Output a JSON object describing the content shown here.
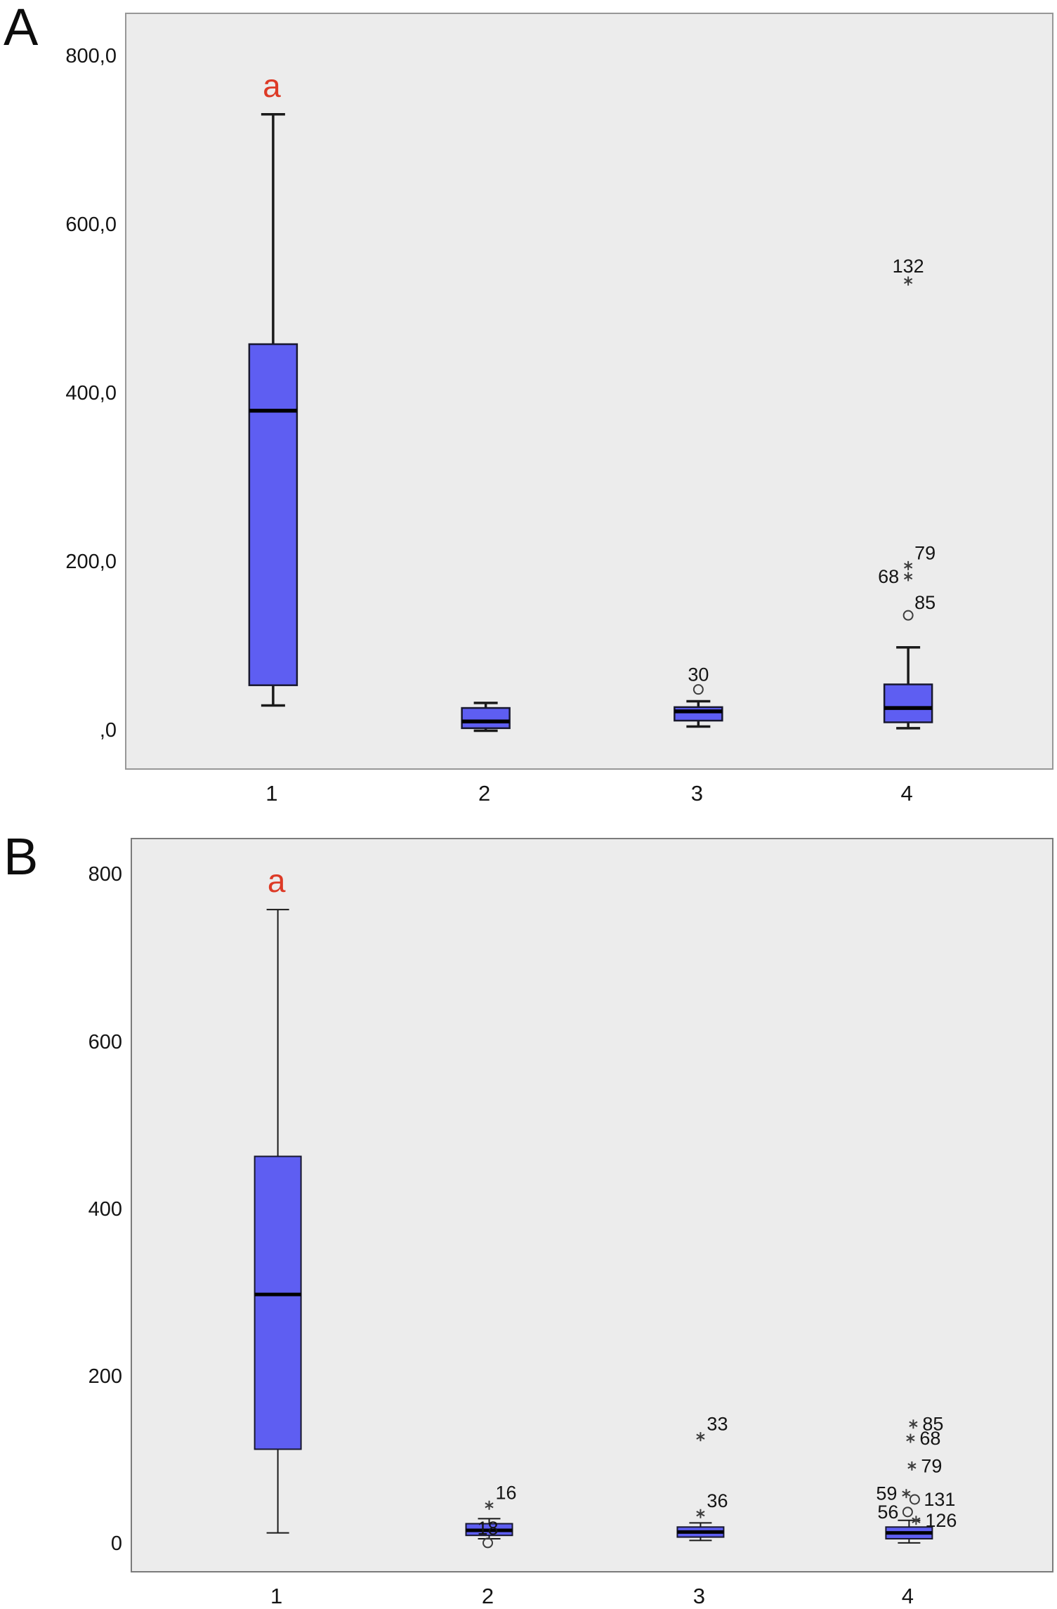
{
  "figure": {
    "panels": [
      {
        "letter": "A"
      },
      {
        "letter": "B"
      }
    ]
  },
  "colors": {
    "box_fill": "#5e5ef2",
    "box_stroke": "#18182e",
    "median": "#000000",
    "whisker": "#1a1a1a",
    "outlier": "#3c3c3c",
    "plot_bg": "#ececec",
    "annotation": "#dd3a26",
    "text": "#141414"
  },
  "chart_data": [
    {
      "type": "boxplot",
      "panel": "A",
      "title": "",
      "xlabel": "",
      "ylabel": "",
      "categories": [
        "1",
        "2",
        "3",
        "4"
      ],
      "ylim": [
        -47,
        852
      ],
      "y_ticks": [
        {
          "value": 800,
          "label": "800,0"
        },
        {
          "value": 600,
          "label": "600,0"
        },
        {
          "value": 400,
          "label": "400,0"
        },
        {
          "value": 200,
          "label": "200,0"
        },
        {
          "value": 0,
          "label": ",0"
        }
      ],
      "annotation": {
        "text": "a",
        "category_index": 0
      },
      "boxes": [
        {
          "category": "1",
          "whisker_low": 31,
          "q1": 55,
          "median": 381,
          "q3": 460,
          "whisker_high": 733,
          "outliers": []
        },
        {
          "category": "2",
          "whisker_low": 1,
          "q1": 4,
          "median": 12,
          "q3": 28,
          "whisker_high": 34,
          "outliers": []
        },
        {
          "category": "3",
          "whisker_low": 6,
          "q1": 13,
          "median": 24,
          "q3": 29,
          "whisker_high": 36,
          "outliers": [
            {
              "value": 50,
              "marker": "circle",
              "label": "30",
              "anchor": "above",
              "dx": 0
            }
          ]
        },
        {
          "category": "4",
          "whisker_low": 4,
          "q1": 11,
          "median": 28,
          "q3": 56,
          "whisker_high": 100,
          "outliers": [
            {
              "value": 535,
              "marker": "star",
              "label": "132",
              "anchor": "above",
              "dx": 0
            },
            {
              "value": 197,
              "marker": "star",
              "label": "79",
              "anchor": "above-right",
              "dx": 0
            },
            {
              "value": 184,
              "marker": "star",
              "label": "68",
              "anchor": "left",
              "dx": 0
            },
            {
              "value": 138,
              "marker": "circle",
              "label": "85",
              "anchor": "above-right",
              "dx": 0
            }
          ]
        }
      ]
    },
    {
      "type": "boxplot",
      "panel": "B",
      "title": "",
      "xlabel": "",
      "ylabel": "",
      "categories": [
        "1",
        "2",
        "3",
        "4"
      ],
      "ylim": [
        -34,
        844
      ],
      "y_ticks": [
        {
          "value": 800,
          "label": "800"
        },
        {
          "value": 600,
          "label": "600"
        },
        {
          "value": 400,
          "label": "400"
        },
        {
          "value": 200,
          "label": "200"
        },
        {
          "value": 0,
          "label": "0"
        }
      ],
      "annotation": {
        "text": "a",
        "category_index": 0
      },
      "boxes": [
        {
          "category": "1",
          "whisker_low": 15,
          "q1": 115,
          "median": 300,
          "q3": 465,
          "whisker_high": 760,
          "outliers": []
        },
        {
          "category": "2",
          "whisker_low": 8,
          "q1": 12,
          "median": 18,
          "q3": 26,
          "whisker_high": 32,
          "outliers": [
            {
              "value": 48,
              "marker": "star",
              "label": "16",
              "anchor": "above-right",
              "dx": 0
            },
            {
              "value": 3,
              "marker": "circle",
              "label": "18",
              "anchor": "above",
              "dx": -2
            }
          ]
        },
        {
          "category": "3",
          "whisker_low": 6,
          "q1": 10,
          "median": 16,
          "q3": 22,
          "whisker_high": 27,
          "outliers": [
            {
              "value": 130,
              "marker": "star",
              "label": "33",
              "anchor": "above-right",
              "dx": 0
            },
            {
              "value": 38,
              "marker": "star",
              "label": "36",
              "anchor": "above-right",
              "dx": 0
            }
          ]
        },
        {
          "category": "4",
          "whisker_low": 3,
          "q1": 8,
          "median": 15,
          "q3": 22,
          "whisker_high": 30,
          "outliers": [
            {
              "value": 145,
              "marker": "star",
              "label": "85",
              "anchor": "right",
              "dx": 6
            },
            {
              "value": 128,
              "marker": "star",
              "label": "68",
              "anchor": "right",
              "dx": 2
            },
            {
              "value": 95,
              "marker": "star",
              "label": "79",
              "anchor": "right",
              "dx": 4
            },
            {
              "value": 62,
              "marker": "star",
              "label": "59",
              "anchor": "left",
              "dx": -4
            },
            {
              "value": 55,
              "marker": "circle",
              "label": "131",
              "anchor": "right",
              "dx": 8
            },
            {
              "value": 40,
              "marker": "circle",
              "label": "56",
              "anchor": "left",
              "dx": -2
            },
            {
              "value": 30,
              "marker": "star",
              "label": "126",
              "anchor": "right",
              "dx": 10
            }
          ]
        }
      ]
    }
  ]
}
